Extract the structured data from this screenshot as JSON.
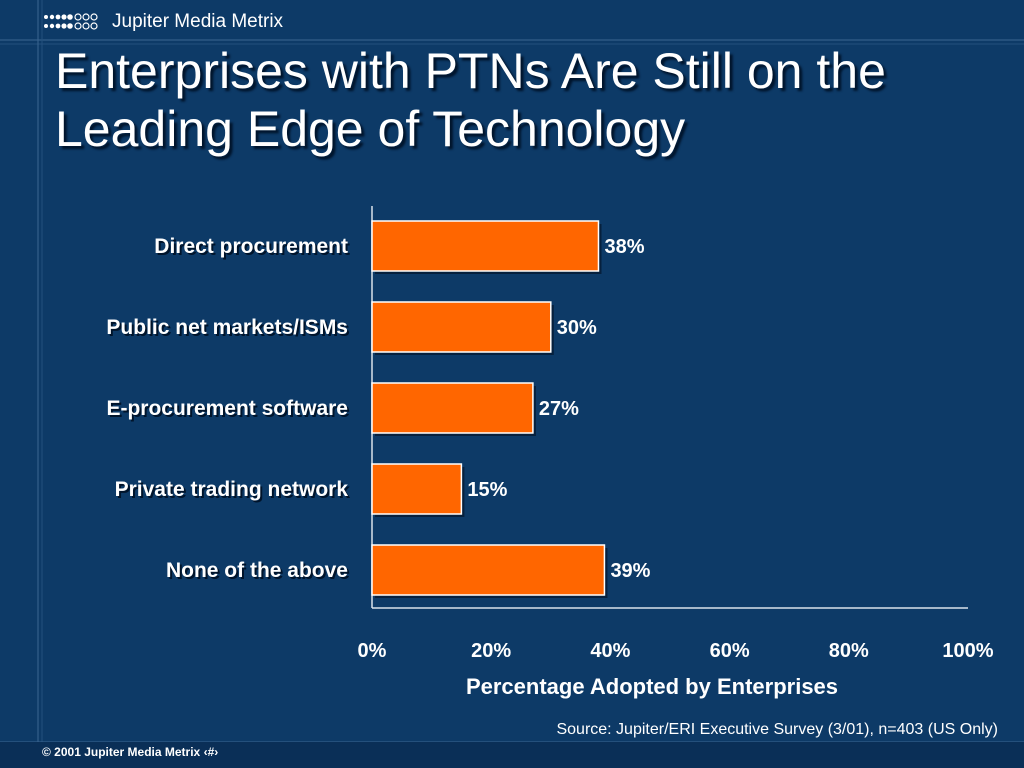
{
  "brand": {
    "name": "Jupiter Media Metrix",
    "logo_icon": "dot-grid-logo-icon"
  },
  "slide": {
    "title_line1": "Enterprises with PTNs Are Still on the",
    "title_line2": "Leading Edge of Technology"
  },
  "colors": {
    "background": "#0d3a67",
    "bar": "#ff6600",
    "text": "#ffffff"
  },
  "chart_data": {
    "type": "bar",
    "orientation": "horizontal",
    "categories": [
      "Direct procurement",
      "Public net markets/ISMs",
      "E-procurement software",
      "Private trading network",
      "None of the above"
    ],
    "values": [
      38,
      30,
      27,
      15,
      39
    ],
    "data_labels": [
      "38%",
      "30%",
      "27%",
      "15%",
      "39%"
    ],
    "xlabel": "Percentage Adopted by Enterprises",
    "xlim": [
      0,
      100
    ],
    "xticks": [
      0,
      20,
      40,
      60,
      80,
      100
    ],
    "xtick_labels": [
      "0%",
      "20%",
      "40%",
      "60%",
      "80%",
      "100%"
    ],
    "grid": false,
    "legend": "none"
  },
  "source": "Source: Jupiter/ERI Executive Survey (3/01), n=403 (US Only)",
  "footer": {
    "copyright": "© 2001 Jupiter Media Metrix",
    "page_marker": "‹#›"
  }
}
